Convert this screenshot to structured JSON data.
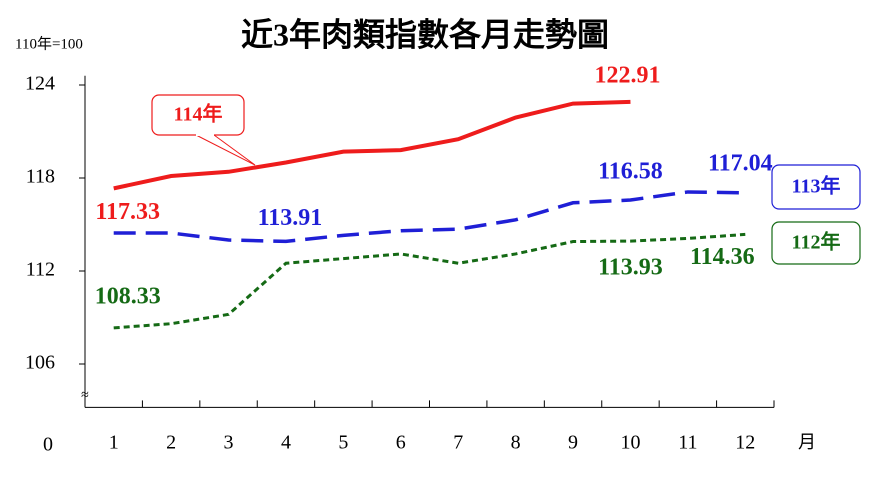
{
  "chart_data": {
    "type": "line",
    "title": "近3年肉類指數各月走勢圖",
    "y_unit": "110年=100",
    "x_unit": "月",
    "axis_break_label": "0",
    "categories": [
      "1",
      "2",
      "3",
      "4",
      "5",
      "6",
      "7",
      "8",
      "9",
      "10",
      "11",
      "12"
    ],
    "ylim": [
      103.2,
      124.6
    ],
    "yticks": [
      106,
      112,
      118,
      124
    ],
    "grid": false,
    "series": [
      {
        "name": "114年",
        "color": "#ee1c1c",
        "style": "solid",
        "values": [
          117.33,
          118.13,
          118.4,
          119.0,
          119.7,
          119.8,
          120.5,
          121.9,
          122.8,
          122.91,
          null,
          null
        ],
        "value_labels": [
          "117.33",
          null,
          null,
          null,
          null,
          null,
          null,
          null,
          null,
          "122.91",
          null,
          null
        ]
      },
      {
        "name": "113年",
        "color": "#1f1fd6",
        "style": "dashed",
        "values": [
          114.45,
          114.45,
          114.0,
          113.91,
          114.3,
          114.6,
          114.7,
          115.3,
          116.4,
          116.58,
          117.1,
          117.04
        ],
        "value_labels": [
          null,
          null,
          null,
          "113.91",
          null,
          null,
          null,
          null,
          null,
          "116.58",
          null,
          "117.04"
        ]
      },
      {
        "name": "112年",
        "color": "#156a15",
        "style": "dotted",
        "values": [
          108.33,
          108.6,
          109.2,
          112.5,
          112.8,
          113.1,
          112.5,
          113.1,
          113.9,
          113.93,
          114.1,
          114.36
        ],
        "value_labels": [
          "108.33",
          null,
          null,
          null,
          null,
          null,
          null,
          null,
          null,
          "113.93",
          null,
          "114.36"
        ]
      }
    ]
  }
}
